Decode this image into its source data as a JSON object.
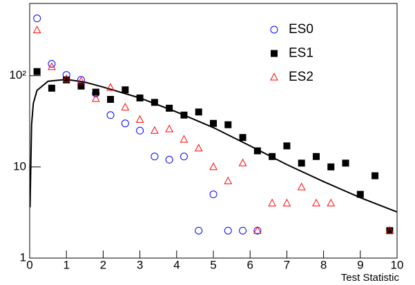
{
  "chart_data": {
    "type": "scatter",
    "x_label": "Test Statistic",
    "x": [
      0.2,
      0.6,
      1.0,
      1.4,
      1.8,
      2.2,
      2.6,
      3.0,
      3.4,
      3.8,
      4.2,
      4.6,
      5.0,
      5.4,
      5.8,
      6.2,
      6.6,
      7.0,
      7.4,
      7.8,
      8.2,
      8.6,
      9.0,
      9.4,
      9.8
    ],
    "series": [
      {
        "name": "ES0",
        "color": "#0000ff",
        "marker": "circle",
        "filled": false,
        "values": [
          425,
          135,
          102,
          90,
          64,
          37,
          30,
          25,
          13,
          12,
          13,
          2,
          5,
          2,
          2,
          2,
          null,
          null,
          null,
          null,
          null,
          null,
          null,
          null,
          null
        ]
      },
      {
        "name": "ES1",
        "color": "#000000",
        "marker": "square",
        "filled": true,
        "values": [
          111,
          73,
          90,
          77,
          66,
          55,
          70,
          57,
          51,
          44,
          37,
          40,
          30,
          29,
          21,
          15,
          13,
          17,
          11,
          13,
          10,
          11,
          5,
          8,
          2
        ]
      },
      {
        "name": "ES2",
        "color": "#ff0000",
        "marker": "triangle",
        "filled": false,
        "values": [
          316,
          125,
          92,
          87,
          56,
          74,
          45,
          33,
          25,
          26,
          20,
          16,
          10,
          7,
          11,
          2,
          4,
          4,
          6,
          4,
          4,
          null,
          null,
          null,
          2
        ]
      }
    ],
    "curve": {
      "color": "#000000",
      "x": [
        0.01,
        0.05,
        0.1,
        0.2,
        0.5,
        1,
        1.5,
        2,
        3,
        4,
        5,
        6,
        7,
        8,
        9,
        10
      ],
      "values": [
        3.6,
        29,
        50,
        69,
        87,
        91,
        85,
        75,
        57,
        40,
        27,
        17,
        10.6,
        6.9,
        4.6,
        3.2
      ]
    },
    "xlim": [
      0,
      10
    ],
    "xticks": [
      0,
      1,
      2,
      3,
      4,
      5,
      6,
      7,
      8,
      9,
      10
    ],
    "ylim": [
      1,
      620
    ],
    "log_y": true,
    "yticks": [
      1,
      10,
      {
        "value": 100,
        "label": "10²"
      }
    ],
    "legend": "top-right"
  }
}
